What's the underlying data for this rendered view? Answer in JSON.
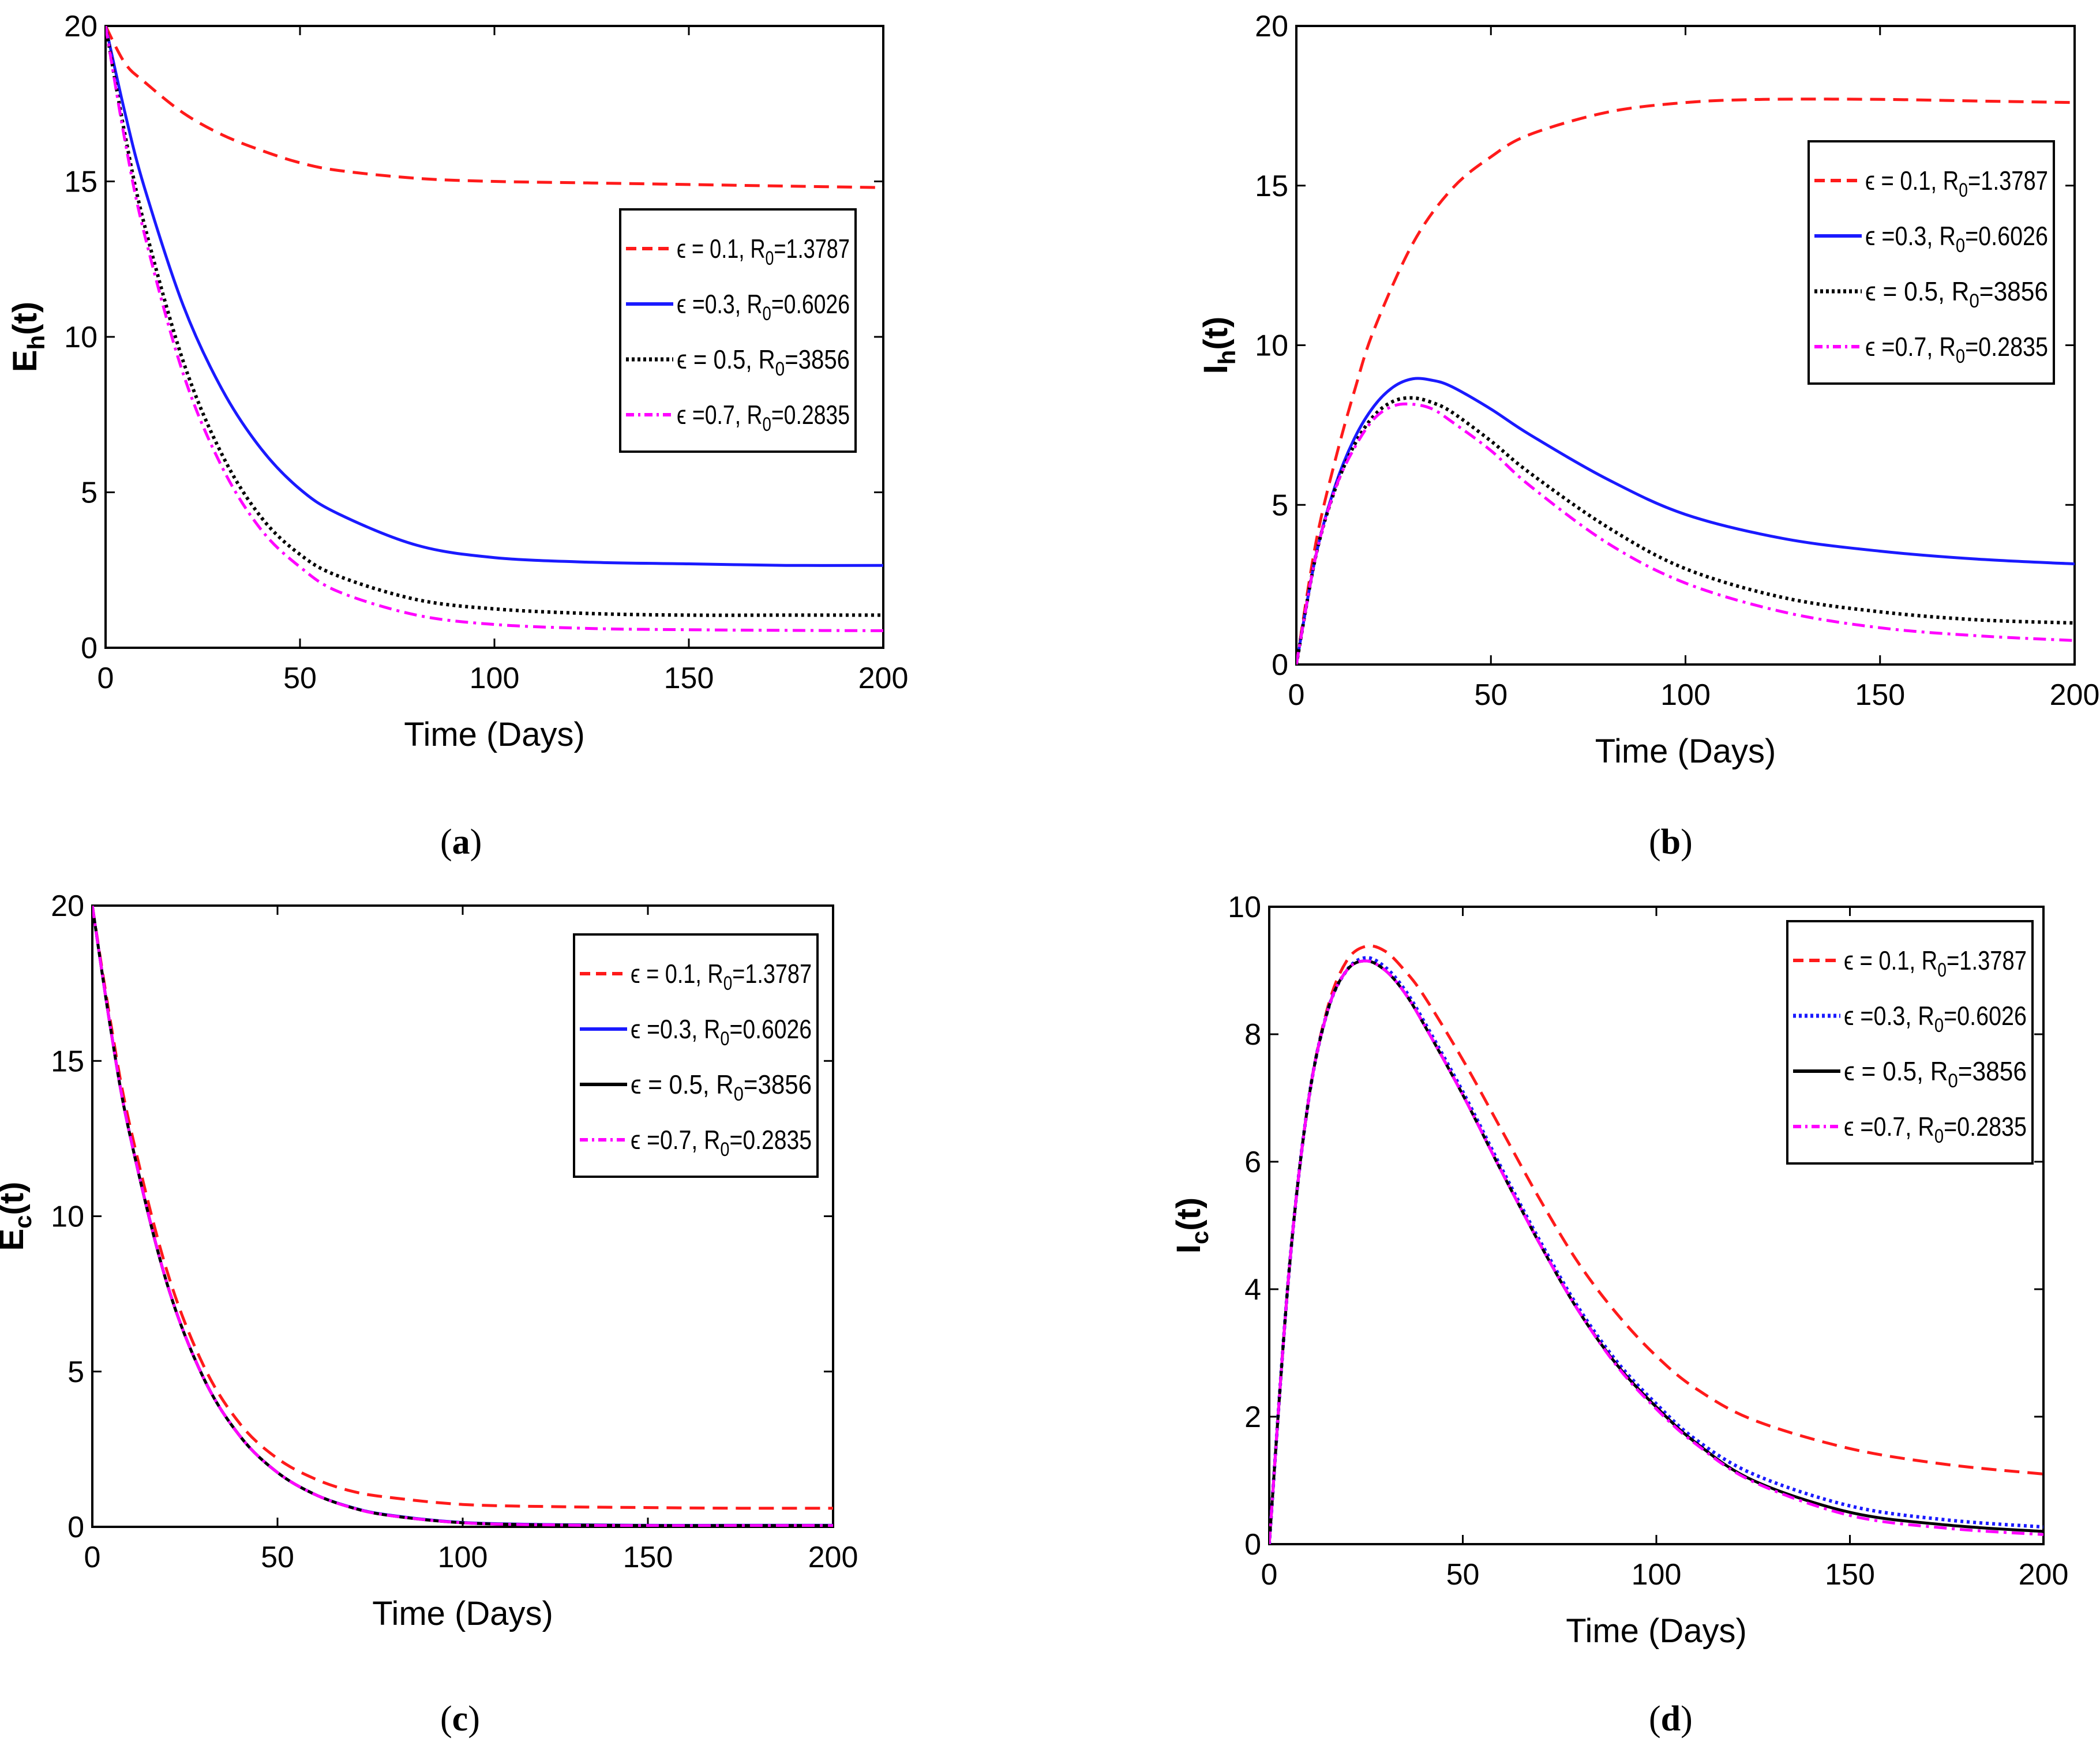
{
  "captions": {
    "a": "a",
    "b": "b",
    "c": "c",
    "d": "d"
  },
  "legend_entries": [
    {
      "eps": "ϵ = 0.1, R",
      "sub": "0",
      "tail": "=1.3787",
      "color": "#ff1a1a",
      "dash": "dashed"
    },
    {
      "eps": "ϵ =0.3, R",
      "sub": "0",
      "tail": "=0.6026",
      "color": "#1a1aff",
      "dash": "solid"
    },
    {
      "eps": "ϵ = 0.5, R",
      "sub": "0",
      "tail": "=3856",
      "color": "#000000",
      "dash": "dotted"
    },
    {
      "eps": "ϵ =0.7, R",
      "sub": "0",
      "tail": "=0.2835",
      "color": "#ff00ff",
      "dash": "dashdot"
    }
  ],
  "chart_data": [
    {
      "id": "a",
      "type": "line",
      "xlabel": "Time (Days)",
      "ylabel_main": "E",
      "ylabel_sub": "h",
      "ylabel_tail": "(t)",
      "xlim": [
        0,
        200
      ],
      "ylim": [
        0,
        20
      ],
      "xticks": [
        0,
        50,
        100,
        150,
        200
      ],
      "yticks": [
        0,
        5,
        10,
        15,
        20
      ],
      "legend_position": "upper-right",
      "series": [
        {
          "name": "ϵ = 0.1, R0=1.3787",
          "color": "#ff1a1a",
          "dash": "dashed",
          "x": [
            0,
            5,
            10,
            20,
            30,
            40,
            50,
            60,
            80,
            100,
            125,
            150,
            175,
            200
          ],
          "y": [
            20,
            18.8,
            18.2,
            17.2,
            16.5,
            16.0,
            15.6,
            15.35,
            15.1,
            15.0,
            14.95,
            14.9,
            14.85,
            14.8
          ]
        },
        {
          "name": "ϵ =0.3, R0=0.6026",
          "color": "#1a1aff",
          "dash": "solid",
          "x": [
            0,
            5,
            10,
            20,
            30,
            40,
            50,
            60,
            80,
            100,
            125,
            150,
            175,
            200
          ],
          "y": [
            20,
            17.2,
            14.8,
            11.0,
            8.3,
            6.4,
            5.1,
            4.3,
            3.3,
            2.9,
            2.75,
            2.7,
            2.65,
            2.65
          ]
        },
        {
          "name": "ϵ = 0.5, R0=3856",
          "color": "#000000",
          "dash": "dotted",
          "x": [
            0,
            5,
            10,
            20,
            30,
            40,
            50,
            60,
            80,
            100,
            125,
            150,
            175,
            200
          ],
          "y": [
            20,
            16.5,
            13.6,
            9.2,
            6.2,
            4.2,
            3.0,
            2.3,
            1.55,
            1.25,
            1.1,
            1.05,
            1.05,
            1.05
          ]
        },
        {
          "name": "ϵ =0.7, R0=0.2835",
          "color": "#ff00ff",
          "dash": "dashdot",
          "x": [
            0,
            5,
            10,
            20,
            30,
            40,
            50,
            60,
            80,
            100,
            125,
            150,
            175,
            200
          ],
          "y": [
            20,
            16.3,
            13.3,
            8.8,
            5.8,
            3.8,
            2.6,
            1.8,
            1.05,
            0.75,
            0.62,
            0.58,
            0.56,
            0.55
          ]
        }
      ]
    },
    {
      "id": "b",
      "type": "line",
      "xlabel": "Time (Days)",
      "ylabel_main": "I",
      "ylabel_sub": "h",
      "ylabel_tail": "(t)",
      "xlim": [
        0,
        200
      ],
      "ylim": [
        0,
        20
      ],
      "xticks": [
        0,
        50,
        100,
        150,
        200
      ],
      "yticks": [
        0,
        5,
        10,
        15,
        20
      ],
      "legend_position": "upper-right",
      "series": [
        {
          "name": "ϵ = 0.1, R0=1.3787",
          "color": "#ff1a1a",
          "dash": "dashed",
          "x": [
            0,
            5,
            10,
            15,
            20,
            30,
            40,
            50,
            60,
            80,
            100,
            120,
            150,
            175,
            200
          ],
          "y": [
            0,
            3.8,
            6.4,
            8.6,
            10.5,
            13.2,
            14.9,
            15.9,
            16.6,
            17.3,
            17.6,
            17.7,
            17.7,
            17.65,
            17.6
          ]
        },
        {
          "name": "ϵ =0.3, R0=0.6026",
          "color": "#1a1aff",
          "dash": "solid",
          "x": [
            0,
            5,
            10,
            15,
            20,
            25,
            30,
            35,
            40,
            50,
            60,
            80,
            100,
            125,
            150,
            175,
            200
          ],
          "y": [
            0,
            3.4,
            5.6,
            7.1,
            8.1,
            8.7,
            8.95,
            8.9,
            8.7,
            8.0,
            7.2,
            5.8,
            4.7,
            3.95,
            3.55,
            3.3,
            3.15
          ]
        },
        {
          "name": "ϵ = 0.5, R0=3856",
          "color": "#000000",
          "dash": "dotted",
          "x": [
            0,
            5,
            10,
            15,
            20,
            25,
            30,
            35,
            40,
            50,
            60,
            80,
            100,
            125,
            150,
            175,
            200
          ],
          "y": [
            0,
            3.4,
            5.5,
            6.9,
            7.8,
            8.25,
            8.35,
            8.2,
            7.9,
            7.0,
            6.0,
            4.3,
            3.0,
            2.1,
            1.65,
            1.4,
            1.3
          ]
        },
        {
          "name": "ϵ =0.7, R0=0.2835",
          "color": "#ff00ff",
          "dash": "dashdot",
          "x": [
            0,
            5,
            10,
            15,
            20,
            25,
            30,
            35,
            40,
            50,
            60,
            80,
            100,
            125,
            150,
            175,
            200
          ],
          "y": [
            0,
            3.4,
            5.5,
            6.8,
            7.7,
            8.1,
            8.15,
            8.0,
            7.6,
            6.7,
            5.6,
            3.8,
            2.55,
            1.65,
            1.15,
            0.9,
            0.75
          ]
        }
      ]
    },
    {
      "id": "c",
      "type": "line",
      "xlabel": "Time (Days)",
      "ylabel_main": "E",
      "ylabel_sub": "c",
      "ylabel_tail": "(t)",
      "xlim": [
        0,
        200
      ],
      "ylim": [
        0,
        20
      ],
      "xticks": [
        0,
        50,
        100,
        150,
        200
      ],
      "yticks": [
        0,
        5,
        10,
        15,
        20
      ],
      "legend_position": "upper-right",
      "series": [
        {
          "name": "ϵ = 0.1, R0=1.3787",
          "color": "#ff1a1a",
          "dash": "dashed",
          "x": [
            0,
            5,
            10,
            20,
            30,
            40,
            50,
            60,
            70,
            80,
            100,
            125,
            150,
            175,
            200
          ],
          "y": [
            20,
            16.2,
            13.0,
            8.3,
            5.2,
            3.3,
            2.2,
            1.55,
            1.15,
            0.95,
            0.72,
            0.65,
            0.62,
            0.6,
            0.6
          ]
        },
        {
          "name": "ϵ =0.3, R0=0.6026",
          "color": "#1a1aff",
          "dash": "solid",
          "x": [
            0,
            5,
            10,
            20,
            30,
            40,
            50,
            60,
            70,
            80,
            100,
            125,
            150,
            175,
            200
          ],
          "y": [
            20,
            16.0,
            12.7,
            7.9,
            4.8,
            2.9,
            1.75,
            1.05,
            0.63,
            0.38,
            0.14,
            0.07,
            0.05,
            0.05,
            0.05
          ]
        },
        {
          "name": "ϵ = 0.5, R0=3856",
          "color": "#000000",
          "dash": "solid",
          "x": [
            0,
            5,
            10,
            20,
            30,
            40,
            50,
            60,
            70,
            80,
            100,
            125,
            150,
            175,
            200
          ],
          "y": [
            20,
            16.0,
            12.7,
            7.9,
            4.8,
            2.9,
            1.75,
            1.05,
            0.62,
            0.37,
            0.13,
            0.06,
            0.04,
            0.04,
            0.04
          ]
        },
        {
          "name": "ϵ =0.7, R0=0.2835",
          "color": "#ff00ff",
          "dash": "dashdot",
          "x": [
            0,
            5,
            10,
            20,
            30,
            40,
            50,
            60,
            70,
            80,
            100,
            125,
            150,
            175,
            200
          ],
          "y": [
            20,
            16.0,
            12.7,
            7.9,
            4.8,
            2.9,
            1.75,
            1.05,
            0.62,
            0.37,
            0.13,
            0.06,
            0.04,
            0.04,
            0.04
          ]
        }
      ]
    },
    {
      "id": "d",
      "type": "line",
      "xlabel": "Time (Days)",
      "ylabel_main": "I",
      "ylabel_sub": "c",
      "ylabel_tail": "(t)",
      "xlim": [
        0,
        200
      ],
      "ylim": [
        0,
        10
      ],
      "xticks": [
        0,
        50,
        100,
        150,
        200
      ],
      "yticks": [
        0,
        2,
        4,
        6,
        8,
        10
      ],
      "legend_position": "upper-right",
      "series": [
        {
          "name": "ϵ = 0.1, R0=1.3787",
          "color": "#ff1a1a",
          "dash": "dashed",
          "x": [
            0,
            5,
            10,
            15,
            20,
            25,
            30,
            35,
            40,
            50,
            60,
            70,
            80,
            90,
            100,
            110,
            125,
            150,
            175,
            200
          ],
          "y": [
            0,
            4.2,
            6.9,
            8.4,
            9.15,
            9.38,
            9.3,
            9.0,
            8.6,
            7.6,
            6.5,
            5.4,
            4.4,
            3.6,
            2.95,
            2.45,
            1.95,
            1.5,
            1.25,
            1.1
          ]
        },
        {
          "name": "ϵ =0.3, R0=0.6026",
          "color": "#1a1aff",
          "dash": "dotted",
          "x": [
            0,
            5,
            10,
            15,
            20,
            25,
            30,
            35,
            40,
            50,
            60,
            70,
            80,
            90,
            100,
            110,
            125,
            150,
            175,
            200
          ],
          "y": [
            0,
            4.2,
            6.9,
            8.35,
            9.0,
            9.2,
            9.05,
            8.7,
            8.2,
            7.1,
            5.9,
            4.75,
            3.7,
            2.85,
            2.2,
            1.65,
            1.1,
            0.6,
            0.38,
            0.27
          ]
        },
        {
          "name": "ϵ = 0.5, R0=3856",
          "color": "#000000",
          "dash": "solid",
          "x": [
            0,
            5,
            10,
            15,
            20,
            25,
            30,
            35,
            40,
            50,
            60,
            70,
            80,
            90,
            100,
            110,
            125,
            150,
            175,
            200
          ],
          "y": [
            0,
            4.2,
            6.9,
            8.35,
            9.0,
            9.15,
            9.0,
            8.65,
            8.15,
            7.05,
            5.85,
            4.7,
            3.65,
            2.8,
            2.15,
            1.6,
            1.0,
            0.5,
            0.3,
            0.2
          ]
        },
        {
          "name": "ϵ =0.7, R0=0.2835",
          "color": "#ff00ff",
          "dash": "dashdot",
          "x": [
            0,
            5,
            10,
            15,
            20,
            25,
            30,
            35,
            40,
            50,
            60,
            70,
            80,
            90,
            100,
            110,
            125,
            150,
            175,
            200
          ],
          "y": [
            0,
            4.2,
            6.9,
            8.35,
            9.0,
            9.15,
            9.0,
            8.65,
            8.15,
            7.05,
            5.85,
            4.7,
            3.65,
            2.78,
            2.12,
            1.58,
            0.98,
            0.45,
            0.25,
            0.15
          ]
        }
      ]
    }
  ]
}
